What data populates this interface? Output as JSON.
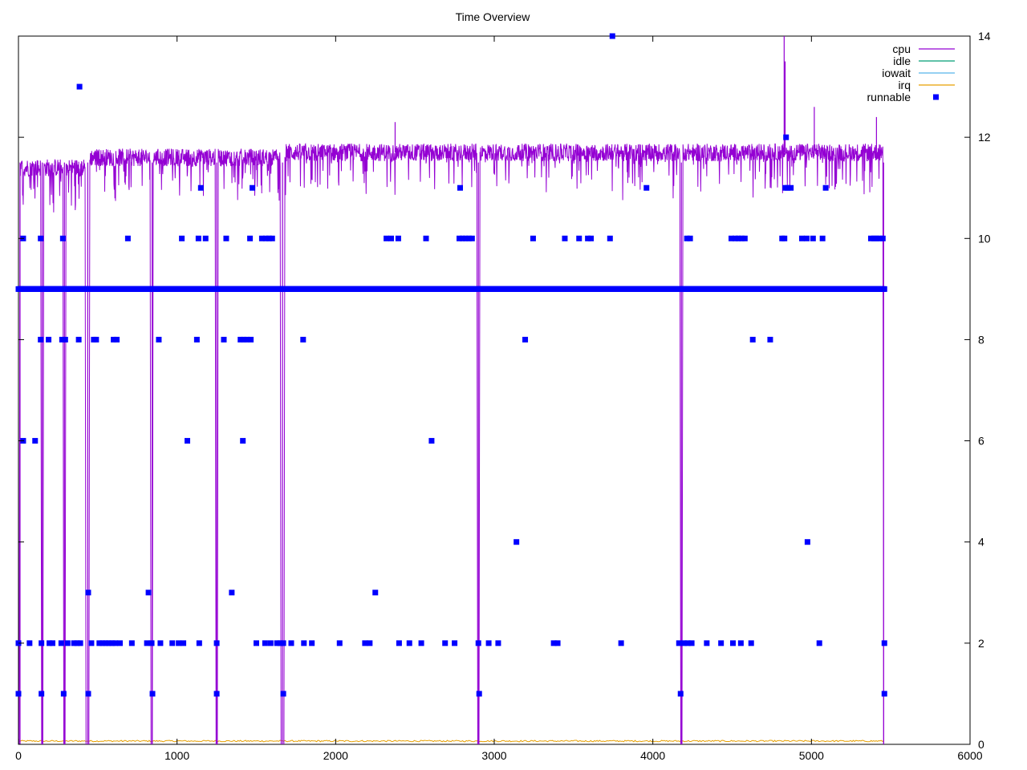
{
  "chart_data": {
    "type": "scatter",
    "title": "Time Overview",
    "xlabel": "",
    "ylabel": "",
    "xlim": [
      0,
      6000
    ],
    "ylim": [
      0,
      14
    ],
    "x_ticks": [
      "0",
      "1000",
      "2000",
      "3000",
      "4000",
      "5000",
      "6000"
    ],
    "y_ticks": [
      "0",
      "2",
      "4",
      "6",
      "8",
      "10",
      "12",
      "14"
    ],
    "y_axis_side": "right",
    "grid": false,
    "legend_position": "top-right",
    "series": [
      {
        "name": "cpu",
        "kind": "line",
        "color": "#9400d3",
        "baseline_segments": [
          {
            "x": [
              10,
              140
            ],
            "level": 11.4
          },
          {
            "x": [
              160,
              280
            ],
            "level": 11.4
          },
          {
            "x": [
              300,
              420
            ],
            "level": 11.4
          },
          {
            "x": [
              450,
              830
            ],
            "level": 11.6
          },
          {
            "x": [
              850,
              1240
            ],
            "level": 11.6
          },
          {
            "x": [
              1260,
              1650
            ],
            "level": 11.6
          },
          {
            "x": [
              1680,
              2890
            ],
            "level": 11.7
          },
          {
            "x": [
              2910,
              4170
            ],
            "level": 11.7
          },
          {
            "x": [
              4190,
              5450
            ],
            "level": 11.7
          }
        ],
        "drops_to_zero_at": [
          10,
          150,
          290,
          437,
          843,
          1250,
          1665,
          2900,
          4180,
          5455
        ],
        "spikes": [
          {
            "x": 2375,
            "y": 12.3
          },
          {
            "x": 4828,
            "y": 14.0
          },
          {
            "x": 4834,
            "y": 13.5
          },
          {
            "x": 5018,
            "y": 12.6
          },
          {
            "x": 5410,
            "y": 12.4
          }
        ]
      },
      {
        "name": "idle",
        "kind": "line",
        "color": "#009e73",
        "values": []
      },
      {
        "name": "iowait",
        "kind": "line",
        "color": "#56b4e9",
        "values": []
      },
      {
        "name": "irq",
        "kind": "line",
        "color": "#e69f00",
        "baseline": 0.05,
        "x_range": [
          0,
          5460
        ]
      },
      {
        "name": "runnable",
        "kind": "points",
        "color": "#0000ff",
        "constant_line": {
          "y": 9,
          "x_range": [
            0,
            5460
          ]
        },
        "points": [
          [
            0,
            2
          ],
          [
            0,
            1
          ],
          [
            15,
            9
          ],
          [
            30,
            10
          ],
          [
            30,
            6
          ],
          [
            70,
            2
          ],
          [
            105,
            6
          ],
          [
            140,
            10
          ],
          [
            140,
            8
          ],
          [
            145,
            2
          ],
          [
            145,
            1
          ],
          [
            190,
            8
          ],
          [
            195,
            2
          ],
          [
            215,
            2
          ],
          [
            270,
            2
          ],
          [
            280,
            10
          ],
          [
            275,
            8
          ],
          [
            295,
            8
          ],
          [
            285,
            1
          ],
          [
            310,
            2
          ],
          [
            350,
            2
          ],
          [
            370,
            2
          ],
          [
            380,
            8
          ],
          [
            390,
            2
          ],
          [
            385,
            13
          ],
          [
            440,
            3
          ],
          [
            440,
            1
          ],
          [
            460,
            2
          ],
          [
            475,
            8
          ],
          [
            490,
            8
          ],
          [
            510,
            2
          ],
          [
            530,
            2
          ],
          [
            550,
            2
          ],
          [
            570,
            2
          ],
          [
            590,
            2
          ],
          [
            600,
            8
          ],
          [
            610,
            2
          ],
          [
            620,
            8
          ],
          [
            640,
            2
          ],
          [
            690,
            10
          ],
          [
            715,
            2
          ],
          [
            810,
            2
          ],
          [
            820,
            3
          ],
          [
            840,
            2
          ],
          [
            845,
            1
          ],
          [
            885,
            8
          ],
          [
            895,
            2
          ],
          [
            970,
            2
          ],
          [
            1010,
            2
          ],
          [
            1030,
            10
          ],
          [
            1040,
            2
          ],
          [
            1065,
            6
          ],
          [
            1125,
            8
          ],
          [
            1135,
            10
          ],
          [
            1140,
            2
          ],
          [
            1150,
            11
          ],
          [
            1180,
            10
          ],
          [
            1250,
            2
          ],
          [
            1250,
            1
          ],
          [
            1295,
            8
          ],
          [
            1310,
            10
          ],
          [
            1345,
            3
          ],
          [
            1400,
            8
          ],
          [
            1415,
            6
          ],
          [
            1420,
            8
          ],
          [
            1440,
            8
          ],
          [
            1460,
            10
          ],
          [
            1465,
            8
          ],
          [
            1475,
            11
          ],
          [
            1500,
            2
          ],
          [
            1535,
            10
          ],
          [
            1555,
            2
          ],
          [
            1560,
            10
          ],
          [
            1580,
            10
          ],
          [
            1590,
            2
          ],
          [
            1600,
            10
          ],
          [
            1630,
            2
          ],
          [
            1650,
            2
          ],
          [
            1670,
            2
          ],
          [
            1670,
            1
          ],
          [
            1720,
            2
          ],
          [
            1795,
            8
          ],
          [
            1800,
            2
          ],
          [
            1850,
            2
          ],
          [
            2025,
            2
          ],
          [
            2185,
            2
          ],
          [
            2215,
            2
          ],
          [
            2250,
            3
          ],
          [
            2320,
            10
          ],
          [
            2350,
            10
          ],
          [
            2395,
            10
          ],
          [
            2400,
            2
          ],
          [
            2465,
            2
          ],
          [
            2540,
            2
          ],
          [
            2570,
            10
          ],
          [
            2605,
            6
          ],
          [
            2690,
            2
          ],
          [
            2750,
            2
          ],
          [
            2780,
            10
          ],
          [
            2785,
            11
          ],
          [
            2800,
            10
          ],
          [
            2820,
            10
          ],
          [
            2840,
            10
          ],
          [
            2860,
            10
          ],
          [
            2900,
            2
          ],
          [
            2905,
            1
          ],
          [
            2965,
            2
          ],
          [
            3025,
            2
          ],
          [
            3140,
            4
          ],
          [
            3195,
            8
          ],
          [
            3245,
            10
          ],
          [
            3375,
            2
          ],
          [
            3400,
            2
          ],
          [
            3445,
            10
          ],
          [
            3535,
            10
          ],
          [
            3590,
            10
          ],
          [
            3610,
            10
          ],
          [
            3730,
            10
          ],
          [
            3745,
            14
          ],
          [
            3800,
            2
          ],
          [
            3960,
            11
          ],
          [
            4165,
            2
          ],
          [
            4175,
            1
          ],
          [
            4195,
            2
          ],
          [
            4215,
            10
          ],
          [
            4220,
            2
          ],
          [
            4235,
            10
          ],
          [
            4245,
            2
          ],
          [
            4340,
            2
          ],
          [
            4430,
            2
          ],
          [
            4495,
            10
          ],
          [
            4505,
            2
          ],
          [
            4520,
            10
          ],
          [
            4540,
            10
          ],
          [
            4555,
            2
          ],
          [
            4560,
            10
          ],
          [
            4580,
            10
          ],
          [
            4620,
            2
          ],
          [
            4630,
            8
          ],
          [
            4740,
            8
          ],
          [
            4815,
            10
          ],
          [
            4830,
            10
          ],
          [
            4835,
            11
          ],
          [
            4840,
            12
          ],
          [
            4850,
            11
          ],
          [
            4870,
            11
          ],
          [
            4940,
            10
          ],
          [
            4970,
            10
          ],
          [
            4975,
            4
          ],
          [
            5010,
            10
          ],
          [
            5050,
            2
          ],
          [
            5070,
            10
          ],
          [
            5090,
            11
          ],
          [
            5375,
            10
          ],
          [
            5395,
            10
          ],
          [
            5410,
            10
          ],
          [
            5430,
            10
          ],
          [
            5450,
            10
          ],
          [
            5460,
            2
          ],
          [
            5460,
            1
          ]
        ]
      }
    ]
  }
}
